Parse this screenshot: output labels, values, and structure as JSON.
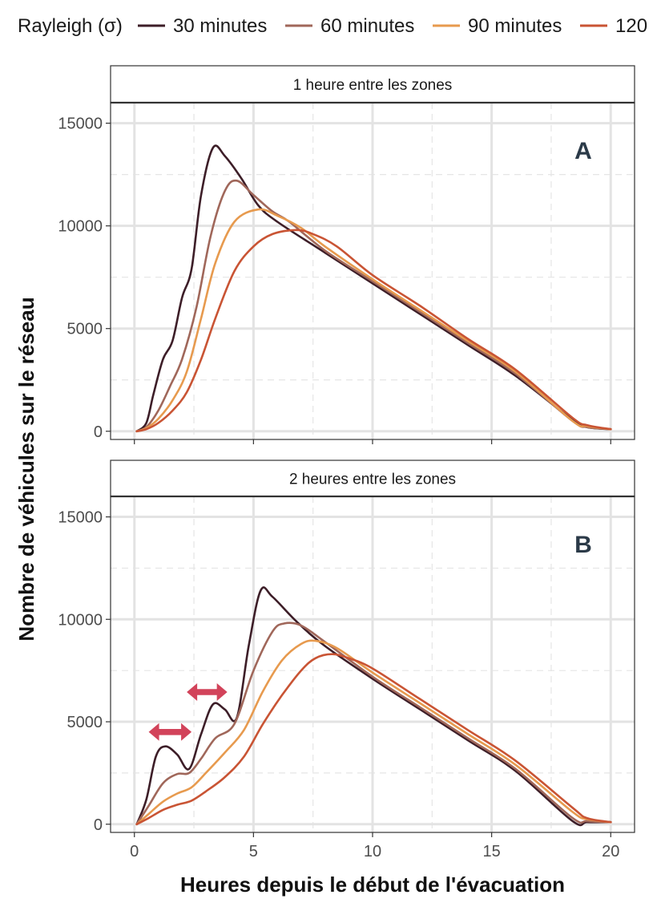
{
  "chart_data": {
    "type": "line",
    "xlabel": "Heures depuis le début de l'évacuation",
    "ylabel": "Nombre de véhicules sur le réseau",
    "xlim": [
      -1,
      21
    ],
    "ylim": [
      -400,
      16000
    ],
    "xticks": [
      0,
      5,
      10,
      15,
      20
    ],
    "xtick_labels": [
      "0",
      "5",
      "10",
      "15",
      "20"
    ],
    "yticks": [
      0,
      5000,
      10000,
      15000
    ],
    "ytick_labels": [
      "0",
      "5000",
      "10000",
      "15000"
    ],
    "legend": {
      "title": "Rayleigh (σ)",
      "position": "top",
      "entries": [
        {
          "name": "30 minutes",
          "color": "#3d1e28"
        },
        {
          "name": "60 minutes",
          "color": "#a0675a"
        },
        {
          "name": "90 minutes",
          "color": "#e79a4e"
        },
        {
          "name": "120",
          "color": "#c95434"
        }
      ]
    },
    "panels": [
      {
        "strip": "1 heure entre les zones",
        "tag": "A",
        "series": [
          {
            "name": "30 minutes",
            "color": "#3d1e28",
            "points": [
              [
                0.1,
                0
              ],
              [
                0.5,
                400
              ],
              [
                0.8,
                1800
              ],
              [
                1.2,
                3500
              ],
              [
                1.6,
                4400
              ],
              [
                2.0,
                6500
              ],
              [
                2.4,
                7900
              ],
              [
                2.8,
                11500
              ],
              [
                3.3,
                13800
              ],
              [
                3.8,
                13400
              ],
              [
                4.5,
                12300
              ],
              [
                5.2,
                11000
              ],
              [
                6.0,
                10200
              ],
              [
                8.0,
                8700
              ],
              [
                10.0,
                7200
              ],
              [
                12.0,
                5700
              ],
              [
                14.0,
                4200
              ],
              [
                16.0,
                2700
              ],
              [
                18.4,
                550
              ],
              [
                19.0,
                200
              ],
              [
                20.0,
                100
              ]
            ]
          },
          {
            "name": "60 minutes",
            "color": "#a0675a",
            "points": [
              [
                0.1,
                0
              ],
              [
                0.5,
                200
              ],
              [
                1.0,
                1000
              ],
              [
                1.5,
                2200
              ],
              [
                2.0,
                3500
              ],
              [
                2.6,
                6000
              ],
              [
                3.2,
                9500
              ],
              [
                3.8,
                11700
              ],
              [
                4.3,
                12200
              ],
              [
                5.0,
                11500
              ],
              [
                5.8,
                10700
              ],
              [
                6.5,
                10200
              ],
              [
                8.0,
                8800
              ],
              [
                10.0,
                7300
              ],
              [
                12.0,
                5800
              ],
              [
                14.0,
                4300
              ],
              [
                16.0,
                2800
              ],
              [
                18.4,
                500
              ],
              [
                19.0,
                200
              ],
              [
                20.0,
                100
              ]
            ]
          },
          {
            "name": "90 minutes",
            "color": "#e79a4e",
            "points": [
              [
                0.1,
                0
              ],
              [
                0.5,
                150
              ],
              [
                1.0,
                600
              ],
              [
                1.6,
                1500
              ],
              [
                2.2,
                2900
              ],
              [
                2.8,
                5500
              ],
              [
                3.4,
                8200
              ],
              [
                4.2,
                10200
              ],
              [
                5.2,
                10800
              ],
              [
                6.0,
                10500
              ],
              [
                7.0,
                9900
              ],
              [
                8.0,
                9000
              ],
              [
                10.0,
                7400
              ],
              [
                12.0,
                5900
              ],
              [
                14.0,
                4400
              ],
              [
                16.0,
                2900
              ],
              [
                18.4,
                500
              ],
              [
                19.0,
                250
              ],
              [
                20.0,
                100
              ]
            ]
          },
          {
            "name": "120",
            "color": "#c95434",
            "points": [
              [
                0.1,
                0
              ],
              [
                0.5,
                100
              ],
              [
                1.0,
                400
              ],
              [
                1.6,
                1000
              ],
              [
                2.2,
                1900
              ],
              [
                2.8,
                3500
              ],
              [
                3.4,
                5500
              ],
              [
                4.2,
                7800
              ],
              [
                5.0,
                9000
              ],
              [
                5.8,
                9600
              ],
              [
                6.8,
                9800
              ],
              [
                7.5,
                9600
              ],
              [
                8.5,
                9000
              ],
              [
                10.0,
                7600
              ],
              [
                12.0,
                6100
              ],
              [
                14.0,
                4500
              ],
              [
                16.0,
                3000
              ],
              [
                18.4,
                650
              ],
              [
                19.0,
                300
              ],
              [
                20.0,
                100
              ]
            ]
          }
        ]
      },
      {
        "strip": "2 heures entre les zones",
        "tag": "B",
        "series": [
          {
            "name": "30 minutes",
            "color": "#3d1e28",
            "points": [
              [
                0.1,
                0
              ],
              [
                0.5,
                1200
              ],
              [
                0.9,
                3300
              ],
              [
                1.3,
                3800
              ],
              [
                1.8,
                3400
              ],
              [
                2.3,
                2700
              ],
              [
                2.8,
                4400
              ],
              [
                3.3,
                5850
              ],
              [
                3.8,
                5600
              ],
              [
                4.3,
                5200
              ],
              [
                4.8,
                8700
              ],
              [
                5.3,
                11400
              ],
              [
                5.8,
                11100
              ],
              [
                6.8,
                9900
              ],
              [
                8.0,
                8700
              ],
              [
                10.0,
                7100
              ],
              [
                12.0,
                5600
              ],
              [
                14.0,
                4100
              ],
              [
                16.0,
                2600
              ],
              [
                18.4,
                150
              ],
              [
                19.0,
                100
              ],
              [
                20.0,
                100
              ]
            ]
          },
          {
            "name": "60 minutes",
            "color": "#a0675a",
            "points": [
              [
                0.1,
                0
              ],
              [
                0.6,
                900
              ],
              [
                1.2,
                2000
              ],
              [
                1.8,
                2450
              ],
              [
                2.3,
                2500
              ],
              [
                2.8,
                3200
              ],
              [
                3.4,
                4200
              ],
              [
                4.2,
                4900
              ],
              [
                5.0,
                7500
              ],
              [
                5.8,
                9400
              ],
              [
                6.3,
                9800
              ],
              [
                7.0,
                9700
              ],
              [
                8.0,
                8900
              ],
              [
                10.0,
                7200
              ],
              [
                12.0,
                5700
              ],
              [
                14.0,
                4200
              ],
              [
                16.0,
                2700
              ],
              [
                18.4,
                300
              ],
              [
                19.0,
                150
              ],
              [
                20.0,
                100
              ]
            ]
          },
          {
            "name": "90 minutes",
            "color": "#e79a4e",
            "points": [
              [
                0.1,
                0
              ],
              [
                0.6,
                500
              ],
              [
                1.2,
                1100
              ],
              [
                1.8,
                1500
              ],
              [
                2.4,
                1800
              ],
              [
                3.0,
                2500
              ],
              [
                3.8,
                3500
              ],
              [
                4.6,
                4600
              ],
              [
                5.4,
                6500
              ],
              [
                6.2,
                8000
              ],
              [
                7.0,
                8800
              ],
              [
                7.6,
                8950
              ],
              [
                8.5,
                8600
              ],
              [
                10.0,
                7400
              ],
              [
                12.0,
                5900
              ],
              [
                14.0,
                4400
              ],
              [
                16.0,
                2900
              ],
              [
                18.4,
                600
              ],
              [
                19.0,
                250
              ],
              [
                20.0,
                100
              ]
            ]
          },
          {
            "name": "120",
            "color": "#c95434",
            "points": [
              [
                0.1,
                0
              ],
              [
                0.6,
                300
              ],
              [
                1.2,
                700
              ],
              [
                1.8,
                950
              ],
              [
                2.4,
                1150
              ],
              [
                3.0,
                1600
              ],
              [
                3.8,
                2300
              ],
              [
                4.6,
                3300
              ],
              [
                5.4,
                4900
              ],
              [
                6.2,
                6300
              ],
              [
                7.0,
                7500
              ],
              [
                7.6,
                8100
              ],
              [
                8.3,
                8300
              ],
              [
                9.0,
                8100
              ],
              [
                10.0,
                7600
              ],
              [
                12.0,
                6100
              ],
              [
                14.0,
                4600
              ],
              [
                16.0,
                3100
              ],
              [
                18.4,
                800
              ],
              [
                19.0,
                300
              ],
              [
                20.0,
                100
              ]
            ]
          }
        ],
        "annotations": [
          {
            "type": "double-arrow",
            "x_from": 0.6,
            "x_to": 2.4,
            "y": 4500,
            "color": "#d2435a"
          },
          {
            "type": "double-arrow",
            "x_from": 2.2,
            "x_to": 3.9,
            "y": 6450,
            "color": "#d2435a"
          }
        ]
      }
    ]
  }
}
